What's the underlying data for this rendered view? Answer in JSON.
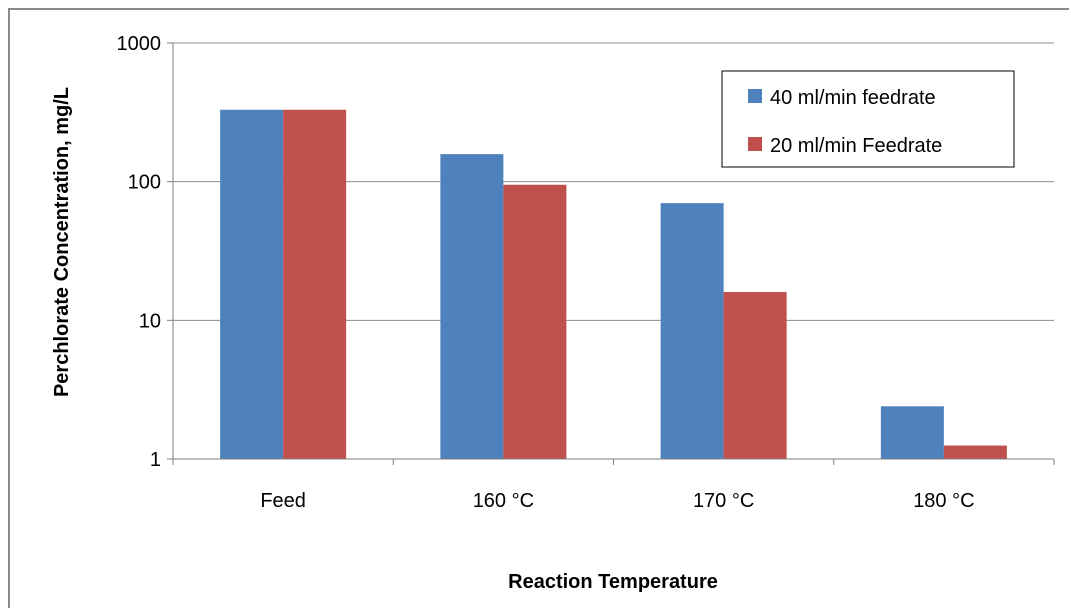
{
  "chart_data": {
    "type": "bar",
    "categories": [
      "Feed",
      "160 °C",
      "170 °C",
      "180 °C"
    ],
    "series": [
      {
        "name": "40 ml/min feedrate",
        "color": "#4f81bd",
        "values": [
          330,
          158,
          70,
          2.4
        ]
      },
      {
        "name": "20 ml/min Feedrate",
        "color": "#c0504d",
        "values": [
          330,
          95,
          16,
          1.25
        ]
      }
    ],
    "xlabel": "Reaction Temperature",
    "ylabel": "Perchlorate Concentration, mg/L",
    "yscale": "log",
    "ylim": [
      1,
      1000
    ],
    "yticks": [
      "1",
      "10",
      "100",
      "1000"
    ],
    "grid": true,
    "legend_position": "top-right"
  }
}
